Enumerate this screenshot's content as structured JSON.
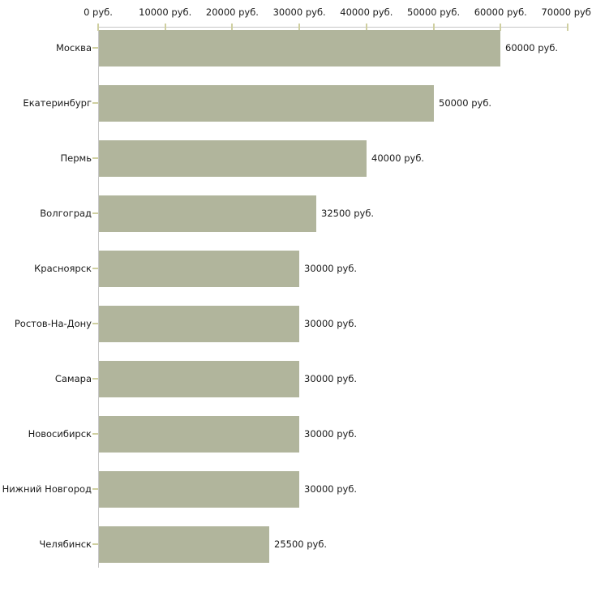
{
  "chart_data": {
    "type": "bar",
    "orientation": "horizontal",
    "title": "",
    "xlabel": "",
    "ylabel": "",
    "unit": "руб.",
    "categories": [
      "Москва",
      "Екатеринбург",
      "Пермь",
      "Волгоград",
      "Красноярск",
      "Ростов-На-Дону",
      "Самара",
      "Новосибирск",
      "Нижний Новгород",
      "Челябинск"
    ],
    "values": [
      60000,
      50000,
      40000,
      32500,
      30000,
      30000,
      30000,
      30000,
      30000,
      25500
    ],
    "value_labels": [
      "60000 руб.",
      "50000 руб.",
      "40000 руб.",
      "32500 руб.",
      "30000 руб.",
      "30000 руб.",
      "30000 руб.",
      "30000 руб.",
      "30000 руб.",
      "25500 руб."
    ],
    "x_ticks": [
      0,
      10000,
      20000,
      30000,
      40000,
      50000,
      60000,
      70000
    ],
    "x_tick_labels": [
      "0 руб.",
      "10000 руб.",
      "20000 руб.",
      "30000 руб.",
      "40000 руб.",
      "50000 руб.",
      "60000 руб.",
      "70000 руб."
    ],
    "xlim": [
      0,
      70000
    ],
    "grid": false,
    "legend": "none",
    "colors": {
      "bar": "#b1b59c",
      "axis_line": "#c6c6c6",
      "tick_mark": "#cfcfa0",
      "text": "#1a1a1a",
      "background": "#ffffff"
    }
  }
}
